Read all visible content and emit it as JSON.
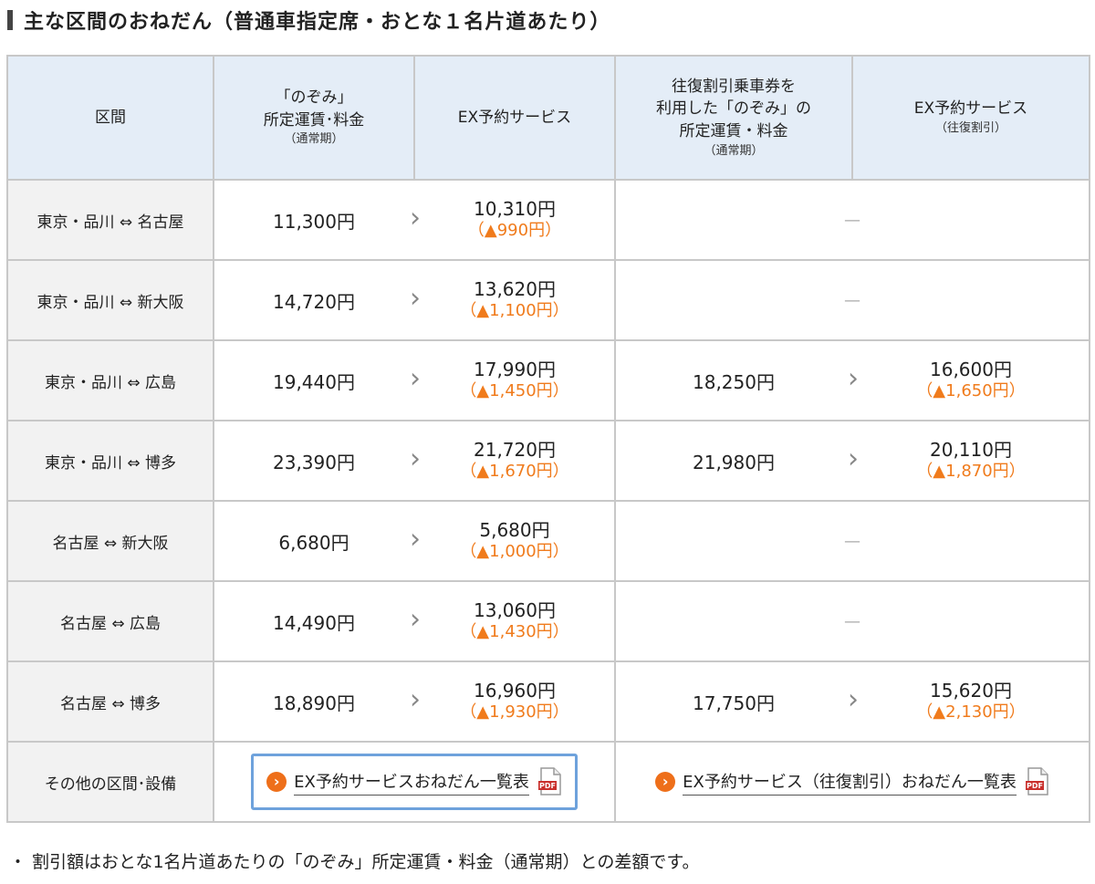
{
  "page": {
    "title": "主な区間のおねだん（普通車指定席・おとな１名片道あたり）",
    "footnote": "・ 割引額はおとな1名片道あたりの「のぞみ」所定運賃・料金（通常期）との差額です。"
  },
  "table": {
    "headers": {
      "section": "区間",
      "nozomi_main": "「のぞみ」\n所定運賃･料金",
      "nozomi_sub": "（通常期）",
      "ex": "EX予約サービス",
      "roundtrip_main": "往復割引乗車券を\n利用した「のぞみ」の\n所定運賃・料金",
      "roundtrip_sub": "（通常期）",
      "ex_round_main": "EX予約サービス",
      "ex_round_sub": "（往復割引）"
    },
    "rows": [
      {
        "section": "東京・品川 ⇔ 名古屋",
        "nozomi": "11,300円",
        "ex": "10,310円",
        "ex_disc": "（▲990円）",
        "round": "",
        "ex_round": "",
        "ex_round_disc": "",
        "dash": "—"
      },
      {
        "section": "東京・品川 ⇔ 新大阪",
        "nozomi": "14,720円",
        "ex": "13,620円",
        "ex_disc": "（▲1,100円）",
        "round": "",
        "ex_round": "",
        "ex_round_disc": "",
        "dash": "—"
      },
      {
        "section": "東京・品川 ⇔ 広島",
        "nozomi": "19,440円",
        "ex": "17,990円",
        "ex_disc": "（▲1,450円）",
        "round": "18,250円",
        "ex_round": "16,600円",
        "ex_round_disc": "（▲1,650円）",
        "dash": ""
      },
      {
        "section": "東京・品川 ⇔ 博多",
        "nozomi": "23,390円",
        "ex": "21,720円",
        "ex_disc": "（▲1,670円）",
        "round": "21,980円",
        "ex_round": "20,110円",
        "ex_round_disc": "（▲1,870円）",
        "dash": ""
      },
      {
        "section": "名古屋 ⇔ 新大阪",
        "nozomi": "6,680円",
        "ex": "5,680円",
        "ex_disc": "（▲1,000円）",
        "round": "",
        "ex_round": "",
        "ex_round_disc": "",
        "dash": "—"
      },
      {
        "section": "名古屋 ⇔ 広島",
        "nozomi": "14,490円",
        "ex": "13,060円",
        "ex_disc": "（▲1,430円）",
        "round": "",
        "ex_round": "",
        "ex_round_disc": "",
        "dash": "—"
      },
      {
        "section": "名古屋 ⇔ 博多",
        "nozomi": "18,890円",
        "ex": "16,960円",
        "ex_disc": "（▲1,930円）",
        "round": "17,750円",
        "ex_round": "15,620円",
        "ex_round_disc": "（▲2,130円）",
        "dash": ""
      }
    ],
    "other": {
      "section": "その他の区間･設備",
      "link1": "EX予約サービスおねだん一覧表",
      "link2": "EX予約サービス（往復割引）おねだん一覧表",
      "pdf_label": "PDF",
      "link_icon": "›"
    }
  },
  "colors": {
    "header_bg": "#e4edf7",
    "section_bg": "#f2f2f2",
    "discount": "#f07b1c",
    "link_icon": "#ee6f1a",
    "focus_ring": "#6ea2dc",
    "pdf": "#c9302c"
  }
}
